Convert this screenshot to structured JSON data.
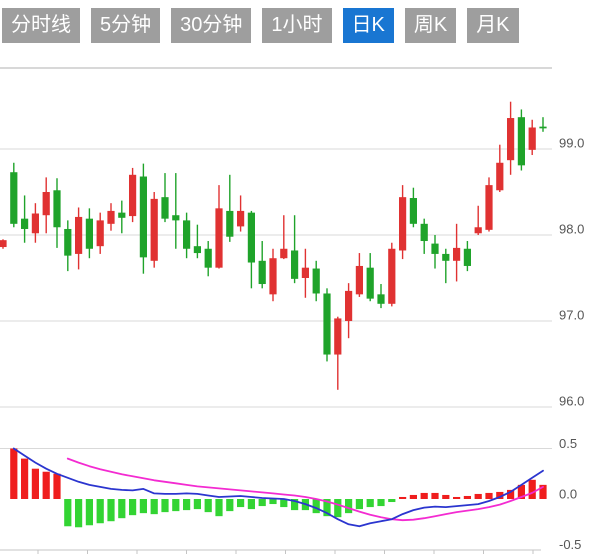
{
  "tabs": {
    "active_index": 4,
    "items": [
      {
        "label": "分时线"
      },
      {
        "label": "5分钟"
      },
      {
        "label": "30分钟"
      },
      {
        "label": "1小时"
      },
      {
        "label": "日K"
      },
      {
        "label": "周K"
      },
      {
        "label": "月K"
      }
    ]
  },
  "colors": {
    "tab_inactive": "#9e9e9e",
    "tab_active": "#1976d2",
    "tab_text": "#ffffff",
    "candle_up": "#e03232",
    "candle_down": "#1fa32a",
    "macd_bar_up": "#ef1d1d",
    "macd_bar_down": "#33d433",
    "dif_line": "#2b35cf",
    "dea_line": "#f32bd1",
    "grid": "#d9d9d9",
    "panel_border": "#cccccc",
    "axis_line": "#c4c4c4",
    "axis_label": "#555555",
    "background": "#ffffff"
  },
  "chart_data": {
    "type": "candlestick+macd",
    "title": "",
    "legend_position": "none",
    "grid": true,
    "price_axis": {
      "side": "right",
      "labels": [
        "99.0",
        "98.0",
        "97.0",
        "96.0"
      ],
      "values": [
        99.0,
        98.0,
        97.0,
        96.0
      ],
      "range": [
        95.8,
        99.95
      ]
    },
    "macd_axis": {
      "side": "right",
      "labels": [
        "0.5",
        "0.0",
        "-0.5"
      ],
      "values": [
        0.5,
        0.0,
        -0.5
      ],
      "range": [
        -0.5,
        0.5
      ]
    },
    "candles_format": [
      "open",
      "high",
      "low",
      "close"
    ],
    "up_means": "close >= open (red, Chinese convention)",
    "candles": [
      [
        97.86,
        97.95,
        97.84,
        97.94
      ],
      [
        98.73,
        98.84,
        98.09,
        98.13
      ],
      [
        98.19,
        98.46,
        97.91,
        98.07
      ],
      [
        98.02,
        98.37,
        97.91,
        98.25
      ],
      [
        98.23,
        98.67,
        98.02,
        98.5
      ],
      [
        98.52,
        98.66,
        97.85,
        98.09
      ],
      [
        98.07,
        98.17,
        97.58,
        97.76
      ],
      [
        97.78,
        98.32,
        97.6,
        98.21
      ],
      [
        98.19,
        98.31,
        97.73,
        97.84
      ],
      [
        97.87,
        98.26,
        97.78,
        98.17
      ],
      [
        98.13,
        98.37,
        98.05,
        98.28
      ],
      [
        98.26,
        98.4,
        98.02,
        98.2
      ],
      [
        98.22,
        98.78,
        98.15,
        98.7
      ],
      [
        98.68,
        98.83,
        97.55,
        97.74
      ],
      [
        97.7,
        98.5,
        97.62,
        98.42
      ],
      [
        98.44,
        98.72,
        98.15,
        98.19
      ],
      [
        98.23,
        98.72,
        97.84,
        98.17
      ],
      [
        98.17,
        98.26,
        97.73,
        97.84
      ],
      [
        97.87,
        98.12,
        97.73,
        97.79
      ],
      [
        97.84,
        97.93,
        97.52,
        97.62
      ],
      [
        97.62,
        98.58,
        97.61,
        98.31
      ],
      [
        98.28,
        98.7,
        97.92,
        97.98
      ],
      [
        98.1,
        98.46,
        98.04,
        98.28
      ],
      [
        98.26,
        98.28,
        97.38,
        97.68
      ],
      [
        97.7,
        97.93,
        97.38,
        97.43
      ],
      [
        97.31,
        97.84,
        97.23,
        97.73
      ],
      [
        97.73,
        98.23,
        97.72,
        97.84
      ],
      [
        97.82,
        98.23,
        97.44,
        97.49
      ],
      [
        97.5,
        97.84,
        97.27,
        97.62
      ],
      [
        97.61,
        97.7,
        97.23,
        97.32
      ],
      [
        97.32,
        97.38,
        96.53,
        96.61
      ],
      [
        96.61,
        97.05,
        96.2,
        97.03
      ],
      [
        97.0,
        97.44,
        96.8,
        97.35
      ],
      [
        97.31,
        97.79,
        97.28,
        97.64
      ],
      [
        97.62,
        97.79,
        97.23,
        97.26
      ],
      [
        97.31,
        97.43,
        97.15,
        97.2
      ],
      [
        97.2,
        97.91,
        97.17,
        97.84
      ],
      [
        97.82,
        98.58,
        97.72,
        98.44
      ],
      [
        98.43,
        98.55,
        98.09,
        98.13
      ],
      [
        98.13,
        98.19,
        97.78,
        97.93
      ],
      [
        97.9,
        98.0,
        97.61,
        97.78
      ],
      [
        97.78,
        97.84,
        97.44,
        97.7
      ],
      [
        97.7,
        98.13,
        97.46,
        97.85
      ],
      [
        97.84,
        97.93,
        97.58,
        97.64
      ],
      [
        98.02,
        98.34,
        98.0,
        98.09
      ],
      [
        98.06,
        98.67,
        98.04,
        98.58
      ],
      [
        98.52,
        99.05,
        98.5,
        98.84
      ],
      [
        98.87,
        99.55,
        98.7,
        99.36
      ],
      [
        99.37,
        99.46,
        98.75,
        98.81
      ],
      [
        98.99,
        99.34,
        98.93,
        99.25
      ],
      [
        99.26,
        99.37,
        99.2,
        99.24
      ]
    ],
    "macd_histogram": [
      null,
      0.5,
      0.4,
      0.3,
      0.27,
      0.25,
      -0.27,
      -0.28,
      -0.26,
      -0.24,
      -0.22,
      -0.19,
      -0.16,
      -0.14,
      -0.15,
      -0.13,
      -0.12,
      -0.11,
      -0.1,
      -0.13,
      -0.17,
      -0.12,
      -0.08,
      -0.1,
      -0.07,
      -0.05,
      -0.08,
      -0.11,
      -0.11,
      -0.14,
      -0.17,
      -0.18,
      -0.14,
      -0.1,
      -0.08,
      -0.07,
      -0.03,
      0.02,
      0.04,
      0.06,
      0.06,
      0.04,
      0.02,
      0.03,
      0.05,
      0.06,
      0.07,
      0.09,
      0.14,
      0.19,
      0.14
    ],
    "dif": [
      null,
      0.5,
      0.43,
      0.36,
      0.3,
      0.25,
      0.21,
      0.17,
      0.14,
      0.12,
      0.1,
      0.09,
      0.085,
      0.1,
      0.055,
      0.05,
      0.05,
      0.055,
      0.05,
      0.035,
      0.02,
      0.025,
      0.03,
      0.02,
      0.01,
      0.005,
      0.0,
      -0.02,
      -0.05,
      -0.09,
      -0.14,
      -0.2,
      -0.25,
      -0.27,
      -0.24,
      -0.22,
      -0.2,
      -0.15,
      -0.11,
      -0.085,
      -0.075,
      -0.08,
      -0.07,
      -0.06,
      -0.05,
      -0.02,
      0.02,
      0.07,
      0.14,
      0.21,
      0.28
    ],
    "dea": [
      null,
      null,
      null,
      null,
      null,
      null,
      0.4,
      0.36,
      0.325,
      0.295,
      0.27,
      0.245,
      0.225,
      0.205,
      0.185,
      0.17,
      0.155,
      0.14,
      0.125,
      0.115,
      0.105,
      0.095,
      0.085,
      0.075,
      0.065,
      0.055,
      0.045,
      0.035,
      0.02,
      0.0,
      -0.025,
      -0.055,
      -0.09,
      -0.125,
      -0.155,
      -0.18,
      -0.2,
      -0.21,
      -0.205,
      -0.19,
      -0.17,
      -0.15,
      -0.13,
      -0.115,
      -0.1,
      -0.08,
      -0.055,
      -0.02,
      0.02,
      0.06,
      0.12
    ]
  }
}
